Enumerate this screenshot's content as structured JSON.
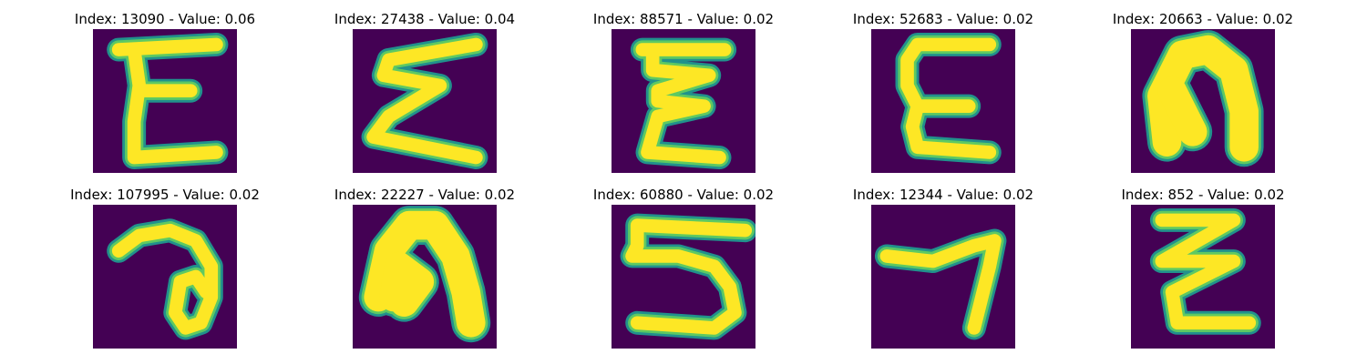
{
  "colors": {
    "background": "#440154",
    "stroke_core": "#fde725",
    "stroke_mid": "#5ec962",
    "stroke_edge": "#21918c"
  },
  "panels": [
    {
      "index": 13090,
      "value": "0.06",
      "label": "Index: 13090 - Value: 0.06"
    },
    {
      "index": 27438,
      "value": "0.04",
      "label": "Index: 27438 - Value: 0.04"
    },
    {
      "index": 88571,
      "value": "0.02",
      "label": "Index: 88571 - Value: 0.02"
    },
    {
      "index": 52683,
      "value": "0.02",
      "label": "Index: 52683 - Value: 0.02"
    },
    {
      "index": 20663,
      "value": "0.02",
      "label": "Index: 20663 - Value: 0.02"
    },
    {
      "index": 107995,
      "value": "0.02",
      "label": "Index: 107995 - Value: 0.02"
    },
    {
      "index": 22227,
      "value": "0.02",
      "label": "Index: 22227 - Value: 0.02"
    },
    {
      "index": 60880,
      "value": "0.02",
      "label": "Index: 60880 - Value: 0.02"
    },
    {
      "index": 12344,
      "value": "0.02",
      "label": "Index: 12344 - Value: 0.02"
    },
    {
      "index": 852,
      "value": "0.02",
      "label": "Index: 852 - Value: 0.02"
    }
  ]
}
